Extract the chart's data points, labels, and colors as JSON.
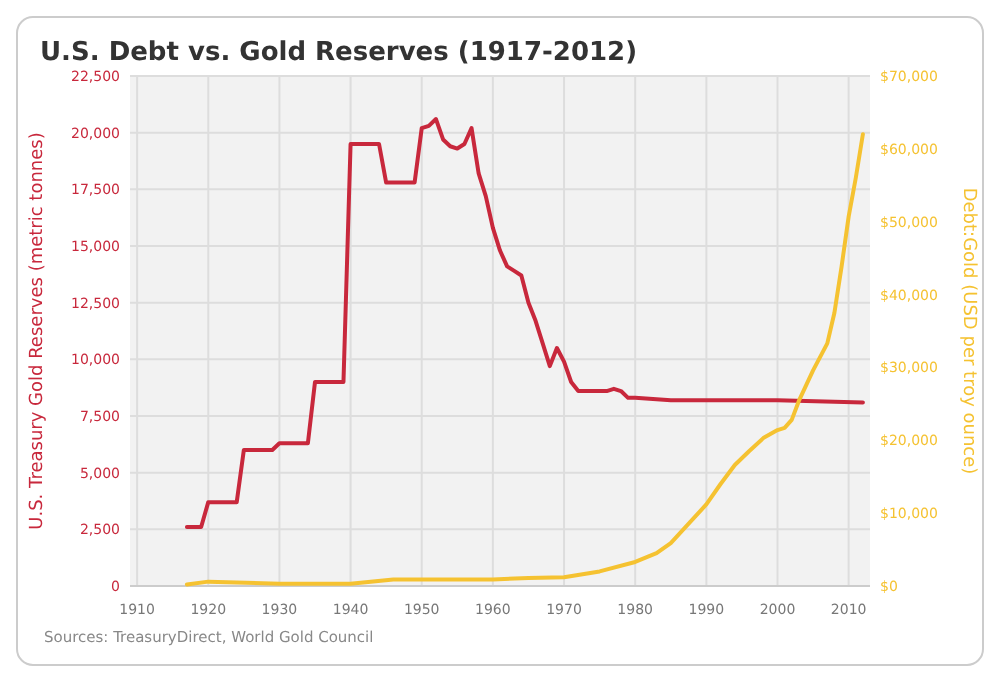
{
  "chart_data": {
    "type": "line",
    "title": "U.S. Debt vs. Gold Reserves (1917-2012)",
    "ylabel": "U.S. Treasury Gold Reserves (metric tonnes)",
    "y2label": "Debt:Gold (USD per troy ounce)",
    "annotations": [
      "Sources: TreasuryDirect, World Gold Council"
    ],
    "xlim": [
      1909,
      2013
    ],
    "xticks": [
      1910,
      1920,
      1930,
      1940,
      1950,
      1960,
      1970,
      1980,
      1990,
      2000,
      2010
    ],
    "ylim": [
      0,
      22500
    ],
    "yticks": [
      {
        "value": 0,
        "label": "0"
      },
      {
        "value": 2500,
        "label": "2,500"
      },
      {
        "value": 5000,
        "label": "5,000"
      },
      {
        "value": 7500,
        "label": "7,500"
      },
      {
        "value": 10000,
        "label": "10,000"
      },
      {
        "value": 12500,
        "label": "12,500"
      },
      {
        "value": 15000,
        "label": "15,000"
      },
      {
        "value": 17500,
        "label": "17,500"
      },
      {
        "value": 20000,
        "label": "20,000"
      },
      {
        "value": 22500,
        "label": "22,500"
      }
    ],
    "y2lim": [
      0,
      70000
    ],
    "y2ticks": [
      {
        "value": 0,
        "label": "$0"
      },
      {
        "value": 10000,
        "label": "$10,000"
      },
      {
        "value": 20000,
        "label": "$20,000"
      },
      {
        "value": 30000,
        "label": "$30,000"
      },
      {
        "value": 40000,
        "label": "$40,000"
      },
      {
        "value": 50000,
        "label": "$50,000"
      },
      {
        "value": 60000,
        "label": "$60,000"
      },
      {
        "value": 70000,
        "label": "$70,000"
      }
    ],
    "grid": true,
    "series": [
      {
        "color": "#c8283c",
        "x": [
          1917,
          1919,
          1920,
          1924,
          1925,
          1929,
          1930,
          1934,
          1935,
          1939,
          1940,
          1944,
          1945,
          1949,
          1950,
          1951,
          1952,
          1953,
          1954,
          1955,
          1956,
          1957,
          1958,
          1959,
          1960,
          1961,
          1962,
          1963,
          1964,
          1965,
          1966,
          1967,
          1968,
          1969,
          1970,
          1971,
          1972,
          1976,
          1977,
          1978,
          1979,
          1980,
          1985,
          1990,
          2000,
          2012
        ],
        "values": [
          2600,
          2600,
          3700,
          3700,
          6000,
          6000,
          6300,
          6300,
          9000,
          9000,
          19500,
          19500,
          17800,
          17800,
          20200,
          20300,
          20600,
          19700,
          19400,
          19300,
          19500,
          20200,
          18200,
          17200,
          15800,
          14800,
          14100,
          13900,
          13700,
          12500,
          11700,
          10700,
          9700,
          10500,
          9900,
          9000,
          8600,
          8600,
          8700,
          8600,
          8300,
          8300,
          8200,
          8200,
          8200,
          8100
        ]
      },
      {
        "color": "#f5c231",
        "axis": "y2",
        "x": [
          1917,
          1920,
          1930,
          1940,
          1946,
          1960,
          1965,
          1970,
          1975,
          1980,
          1983,
          1985,
          1987,
          1990,
          1992,
          1994,
          1996,
          1998,
          2000,
          2001,
          2002,
          2003,
          2005,
          2007,
          2008,
          2009,
          2010,
          2011,
          2012
        ],
        "values": [
          200,
          600,
          300,
          300,
          900,
          900,
          1100,
          1200,
          2000,
          3300,
          4500,
          5900,
          8000,
          11200,
          14000,
          16600,
          18500,
          20300,
          21400,
          21700,
          22800,
          25400,
          29600,
          33300,
          37500,
          43800,
          50700,
          56000,
          62000
        ]
      }
    ]
  }
}
